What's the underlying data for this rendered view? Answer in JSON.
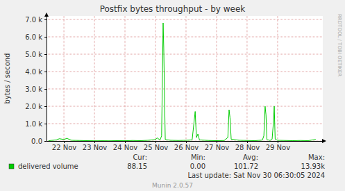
{
  "chart_data": {
    "type": "line",
    "title": "Postfix bytes throughput - by week",
    "y_label": "bytes / second",
    "x": [
      21.5,
      21.75,
      21.85,
      22.0,
      22.1,
      22.25,
      22.5,
      22.75,
      23.0,
      23.25,
      23.5,
      23.75,
      24.0,
      24.25,
      24.5,
      24.75,
      25.0,
      25.05,
      25.15,
      25.2,
      25.25,
      25.27,
      25.32,
      25.5,
      25.75,
      26.0,
      26.2,
      26.3,
      26.34,
      26.39,
      26.44,
      26.75,
      27.0,
      27.25,
      27.37,
      27.41,
      27.44,
      27.48,
      27.75,
      28.0,
      28.25,
      28.5,
      28.55,
      28.59,
      28.62,
      28.65,
      28.75,
      28.82,
      28.86,
      28.89,
      28.92,
      29.0,
      29.25,
      29.5,
      29.75,
      30.0,
      30.25
    ],
    "series": [
      {
        "name": "delivered volume",
        "color": "#00cc00",
        "values": [
          20,
          60,
          130,
          90,
          150,
          40,
          30,
          20,
          10,
          15,
          10,
          20,
          15,
          30,
          20,
          40,
          80,
          180,
          60,
          300,
          6800,
          5400,
          80,
          40,
          30,
          40,
          60,
          1700,
          200,
          400,
          60,
          30,
          20,
          30,
          200,
          1800,
          1350,
          100,
          40,
          30,
          20,
          50,
          300,
          2000,
          1500,
          80,
          30,
          100,
          1000,
          2000,
          100,
          40,
          30,
          20,
          30,
          20,
          88.15
        ]
      }
    ],
    "xlim": [
      21.43,
      30.48
    ],
    "xticks": [
      {
        "value": 22,
        "label": "22 Nov"
      },
      {
        "value": 23,
        "label": "23 Nov"
      },
      {
        "value": 24,
        "label": "24 Nov"
      },
      {
        "value": 25,
        "label": "25 Nov"
      },
      {
        "value": 26,
        "label": "26 Nov"
      },
      {
        "value": 27,
        "label": "27 Nov"
      },
      {
        "value": 28,
        "label": "28 Nov"
      },
      {
        "value": 29,
        "label": "29 Nov"
      }
    ],
    "ylim": [
      0,
      7200
    ],
    "yticks": [
      {
        "value": 0,
        "label": "0.0"
      },
      {
        "value": 1000,
        "label": "1.0 k"
      },
      {
        "value": 2000,
        "label": "2.0 k"
      },
      {
        "value": 3000,
        "label": "3.0 k"
      },
      {
        "value": 4000,
        "label": "4.0 k"
      },
      {
        "value": 5000,
        "label": "5.0 k"
      },
      {
        "value": 6000,
        "label": "6.0 k"
      },
      {
        "value": 7000,
        "label": "7.0 k"
      }
    ],
    "grid": true,
    "stats": {
      "labels": [
        "Cur:",
        "Min:",
        "Avg:",
        "Max:"
      ],
      "values": [
        88.15,
        0,
        101.72,
        13930
      ],
      "value_labels": [
        "88.15",
        "0.00",
        "101.72",
        "13.93k"
      ]
    },
    "annotations": [
      "Last update: Sat Nov 30 06:30:05 2024",
      "Munin 2.0.57",
      "RRDTOOL / TOBI OETIKER"
    ]
  }
}
